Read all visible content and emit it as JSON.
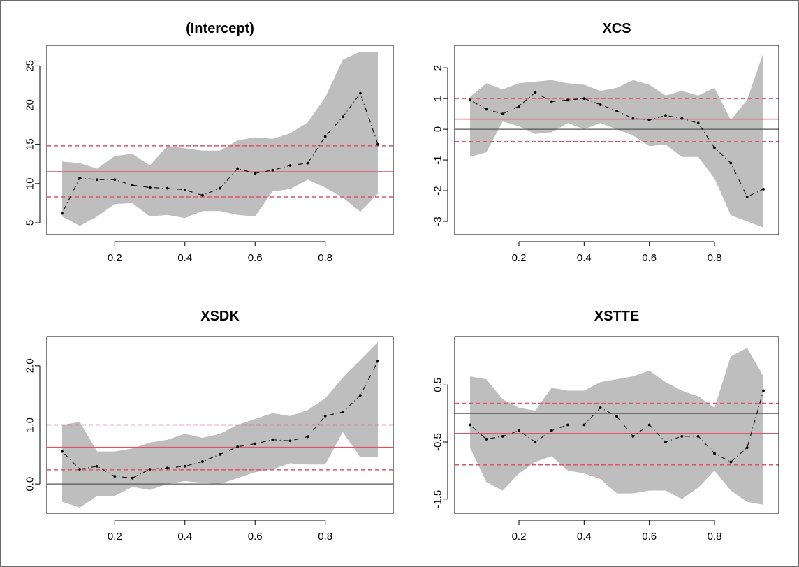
{
  "colors": {
    "band": "#bebebe",
    "estimate": "#000000",
    "ols": "#df536b",
    "zero": "#555555",
    "axis": "#000000"
  },
  "chart_data": [
    {
      "type": "line",
      "title": "(Intercept)",
      "xlabel": "",
      "ylabel": "",
      "xlim": [
        0.05,
        0.95
      ],
      "ylim": [
        4.2,
        26.9
      ],
      "xticks": [
        0.2,
        0.4,
        0.6,
        0.8
      ],
      "xtick_labels": [
        "0.2",
        "0.4",
        "0.6",
        "0.8"
      ],
      "yticks": [
        5,
        10,
        15,
        20,
        25
      ],
      "ytick_labels": [
        "5",
        "10",
        "15",
        "20",
        "25"
      ],
      "x": [
        0.05,
        0.1,
        0.15,
        0.2,
        0.25,
        0.3,
        0.35,
        0.4,
        0.45,
        0.5,
        0.55,
        0.6,
        0.65,
        0.7,
        0.75,
        0.8,
        0.85,
        0.9,
        0.95
      ],
      "estimate": [
        6.2,
        10.7,
        10.5,
        10.5,
        9.8,
        9.5,
        9.4,
        9.2,
        8.5,
        9.4,
        11.9,
        11.3,
        11.7,
        12.3,
        12.6,
        16.0,
        18.5,
        21.5,
        15.0
      ],
      "lower": [
        5.8,
        4.6,
        5.8,
        7.4,
        7.5,
        5.8,
        6.0,
        5.6,
        6.5,
        6.5,
        6.0,
        5.8,
        9.0,
        9.3,
        10.5,
        9.5,
        8.2,
        6.4,
        8.7
      ],
      "upper": [
        12.8,
        12.6,
        11.9,
        13.5,
        13.8,
        12.3,
        14.8,
        14.5,
        14.2,
        14.2,
        15.5,
        15.9,
        15.7,
        16.4,
        17.8,
        21.0,
        25.8,
        26.8,
        26.8
      ],
      "ols_coef": 11.5,
      "ols_ci": [
        8.3,
        14.8
      ],
      "zero_line": false
    },
    {
      "type": "line",
      "title": "XCS",
      "xlabel": "",
      "ylabel": "",
      "xlim": [
        0.05,
        0.95
      ],
      "ylim": [
        -3.25,
        2.55
      ],
      "xticks": [
        0.2,
        0.4,
        0.6,
        0.8
      ],
      "xtick_labels": [
        "0.2",
        "0.4",
        "0.6",
        "0.8"
      ],
      "yticks": [
        -3,
        -2,
        -1,
        0,
        1,
        2
      ],
      "ytick_labels": [
        "-3",
        "-2",
        "-1",
        "0",
        "1",
        "2"
      ],
      "x": [
        0.05,
        0.1,
        0.15,
        0.2,
        0.25,
        0.3,
        0.35,
        0.4,
        0.45,
        0.5,
        0.55,
        0.6,
        0.65,
        0.7,
        0.75,
        0.8,
        0.85,
        0.9,
        0.95
      ],
      "estimate": [
        0.95,
        0.65,
        0.5,
        0.75,
        1.2,
        0.9,
        0.95,
        1.0,
        0.8,
        0.6,
        0.35,
        0.3,
        0.45,
        0.35,
        0.2,
        -0.6,
        -1.1,
        -2.2,
        -1.95
      ],
      "lower": [
        -0.9,
        -0.75,
        0.25,
        0.1,
        -0.15,
        -0.1,
        0.2,
        0.0,
        0.2,
        0.0,
        -0.2,
        -0.55,
        -0.5,
        -0.9,
        -0.9,
        -1.6,
        -2.8,
        -3.0,
        -3.2
      ],
      "upper": [
        1.05,
        1.5,
        1.3,
        1.5,
        1.55,
        1.6,
        1.5,
        1.45,
        1.25,
        1.35,
        1.6,
        1.45,
        1.1,
        1.25,
        1.1,
        1.35,
        0.3,
        0.95,
        2.5
      ],
      "ols_coef": 0.33,
      "ols_ci": [
        -0.4,
        1.0
      ],
      "zero_line": true
    },
    {
      "type": "line",
      "title": "XSDK",
      "xlabel": "",
      "ylabel": "",
      "xlim": [
        0.05,
        0.95
      ],
      "ylim": [
        -0.4,
        2.4
      ],
      "xticks": [
        0.2,
        0.4,
        0.6,
        0.8
      ],
      "xtick_labels": [
        "0.2",
        "0.4",
        "0.6",
        "0.8"
      ],
      "yticks": [
        0.0,
        1.0,
        2.0
      ],
      "ytick_labels": [
        "0.0",
        "1.0",
        "2.0"
      ],
      "x": [
        0.05,
        0.1,
        0.15,
        0.2,
        0.25,
        0.3,
        0.35,
        0.4,
        0.45,
        0.5,
        0.55,
        0.6,
        0.65,
        0.7,
        0.75,
        0.8,
        0.85,
        0.9,
        0.95
      ],
      "estimate": [
        0.55,
        0.25,
        0.3,
        0.13,
        0.1,
        0.25,
        0.27,
        0.3,
        0.38,
        0.5,
        0.63,
        0.68,
        0.75,
        0.73,
        0.8,
        1.15,
        1.22,
        1.5,
        2.08
      ],
      "lower": [
        -0.3,
        -0.4,
        -0.2,
        -0.2,
        -0.05,
        -0.1,
        0.0,
        0.05,
        0.02,
        0.0,
        0.1,
        0.2,
        0.25,
        0.35,
        0.33,
        0.33,
        0.88,
        0.45,
        0.45
      ],
      "upper": [
        1.0,
        1.05,
        0.55,
        0.55,
        0.6,
        0.7,
        0.75,
        0.85,
        0.78,
        0.85,
        1.0,
        1.1,
        1.2,
        1.15,
        1.25,
        1.45,
        1.8,
        2.1,
        2.4
      ],
      "ols_coef": 0.62,
      "ols_ci": [
        0.24,
        1.0
      ],
      "zero_line": true
    },
    {
      "type": "line",
      "title": "XSTTE",
      "xlabel": "",
      "ylabel": "",
      "xlim": [
        0.05,
        0.95
      ],
      "ylim": [
        -1.65,
        1.25
      ],
      "xticks": [
        0.2,
        0.4,
        0.6,
        0.8
      ],
      "xtick_labels": [
        "0.2",
        "0.4",
        "0.6",
        "0.8"
      ],
      "yticks": [
        -1.5,
        -0.5,
        0.5
      ],
      "ytick_labels": [
        "-1.5",
        "-0.5",
        "0.5"
      ],
      "x": [
        0.05,
        0.1,
        0.15,
        0.2,
        0.25,
        0.3,
        0.35,
        0.4,
        0.45,
        0.5,
        0.55,
        0.6,
        0.65,
        0.7,
        0.75,
        0.8,
        0.85,
        0.9,
        0.95
      ],
      "estimate": [
        -0.2,
        -0.45,
        -0.4,
        -0.3,
        -0.5,
        -0.3,
        -0.2,
        -0.2,
        0.1,
        -0.05,
        -0.4,
        -0.2,
        -0.5,
        -0.4,
        -0.4,
        -0.7,
        -0.85,
        -0.6,
        0.4
      ],
      "lower": [
        -0.6,
        -1.2,
        -1.35,
        -1.05,
        -0.85,
        -0.75,
        -1.0,
        -1.05,
        -1.15,
        -1.4,
        -1.4,
        -1.35,
        -1.35,
        -1.5,
        -1.3,
        -1.0,
        -1.35,
        -1.55,
        -1.6
      ],
      "upper": [
        0.65,
        0.6,
        0.25,
        0.1,
        0.05,
        0.45,
        0.4,
        0.4,
        0.55,
        0.6,
        0.65,
        0.75,
        0.55,
        0.4,
        0.3,
        0.1,
        1.0,
        1.15,
        0.65
      ],
      "ols_coef": -0.35,
      "ols_ci": [
        -0.9,
        0.18
      ],
      "zero_line": true
    }
  ]
}
